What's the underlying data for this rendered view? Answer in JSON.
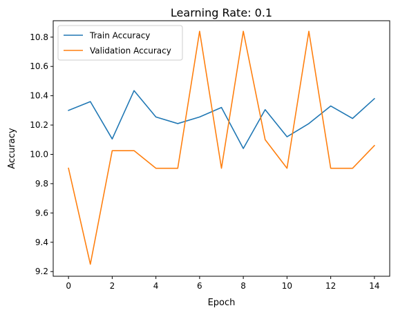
{
  "chart_data": {
    "type": "line",
    "title": "Learning Rate: 0.1",
    "xlabel": "Epoch",
    "ylabel": "Accuracy",
    "x": [
      0,
      1,
      2,
      3,
      4,
      5,
      6,
      7,
      8,
      9,
      10,
      11,
      12,
      13,
      14
    ],
    "xlim": [
      -0.7,
      14.7
    ],
    "ylim": [
      9.168,
      10.912
    ],
    "xticks": [
      0,
      2,
      4,
      6,
      8,
      10,
      12,
      14
    ],
    "xtick_labels": [
      "0",
      "2",
      "4",
      "6",
      "8",
      "10",
      "12",
      "14"
    ],
    "yticks": [
      9.2,
      9.4,
      9.6,
      9.8,
      10.0,
      10.2,
      10.4,
      10.6,
      10.8
    ],
    "ytick_labels": [
      "9.2",
      "9.4",
      "9.6",
      "9.8",
      "10.0",
      "10.2",
      "10.4",
      "10.6",
      "10.8"
    ],
    "grid": false,
    "legend_position": "top-left",
    "series": [
      {
        "name": "Train Accuracy",
        "color": "#1f77b4",
        "values": [
          10.3,
          10.36,
          10.105,
          10.435,
          10.255,
          10.21,
          10.255,
          10.32,
          10.04,
          10.305,
          10.12,
          10.21,
          10.33,
          10.245,
          10.38
        ]
      },
      {
        "name": "Validation Accuracy",
        "color": "#ff7f0e",
        "values": [
          9.905,
          9.25,
          10.025,
          10.025,
          9.905,
          9.905,
          10.84,
          9.905,
          10.84,
          10.1,
          9.905,
          10.84,
          9.905,
          9.905,
          10.06
        ]
      }
    ]
  }
}
